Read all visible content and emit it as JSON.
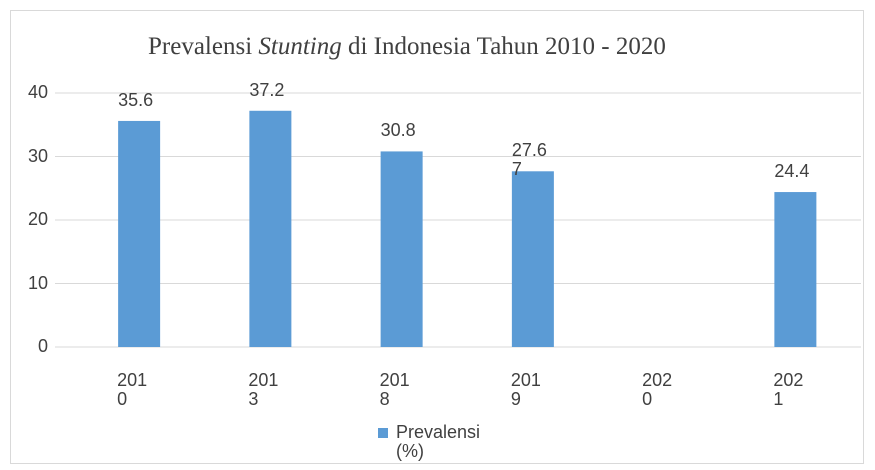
{
  "chart_data": {
    "type": "bar",
    "title": {
      "parts": [
        "Prevalensi ",
        "Stunting",
        " di Indonesia Tahun 2010 - 2020"
      ],
      "italic": [
        1
      ]
    },
    "categories": [
      "2010",
      "2013",
      "2018",
      "2019",
      "2020",
      "2021"
    ],
    "series": [
      {
        "name": "Prevalensi (%)",
        "color": "#5b9bd5",
        "values": [
          35.6,
          37.2,
          30.8,
          27.67,
          null,
          24.4
        ]
      }
    ],
    "ylim": [
      0,
      40
    ],
    "yticks": [
      0,
      10,
      20,
      30,
      40
    ],
    "grid": true,
    "legend": "bottom"
  }
}
